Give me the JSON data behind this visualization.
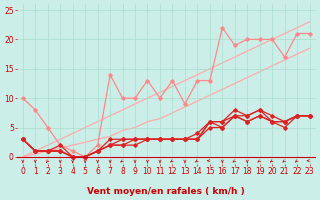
{
  "bg_color": "#cceee8",
  "grid_color": "#aaddcc",
  "xlabel": "Vent moyen/en rafales ( km/h )",
  "xlabel_color": "#cc0000",
  "xlabel_fontsize": 6.5,
  "tick_color": "#cc0000",
  "tick_fontsize": 5.5,
  "xlim": [
    -0.5,
    23.5
  ],
  "ylim": [
    -1.2,
    26
  ],
  "yticks": [
    0,
    5,
    10,
    15,
    20,
    25
  ],
  "xticks": [
    0,
    1,
    2,
    3,
    4,
    5,
    6,
    7,
    8,
    9,
    10,
    11,
    12,
    13,
    14,
    15,
    16,
    17,
    18,
    19,
    20,
    21,
    22,
    23
  ],
  "x": [
    0,
    1,
    2,
    3,
    4,
    5,
    6,
    7,
    8,
    9,
    10,
    11,
    12,
    13,
    14,
    15,
    16,
    17,
    18,
    19,
    20,
    21,
    22,
    23
  ],
  "dark_series": [
    [
      3,
      1,
      1,
      2,
      0,
      0,
      1,
      3,
      3,
      3,
      3,
      3,
      3,
      3,
      4,
      6,
      6,
      8,
      7,
      8,
      7,
      6,
      7,
      7
    ],
    [
      3,
      1,
      1,
      1,
      0,
      0,
      1,
      2,
      3,
      3,
      3,
      3,
      3,
      3,
      3,
      6,
      6,
      7,
      7,
      8,
      6,
      6,
      7,
      7
    ],
    [
      3,
      1,
      1,
      1,
      0,
      0,
      1,
      2,
      2,
      3,
      3,
      3,
      3,
      3,
      3,
      6,
      5,
      7,
      6,
      7,
      6,
      6,
      7,
      7
    ],
    [
      3,
      1,
      1,
      1,
      0,
      0,
      1,
      2,
      2,
      2,
      3,
      3,
      3,
      3,
      3,
      5,
      5,
      7,
      6,
      7,
      6,
      5,
      7,
      7
    ]
  ],
  "dark_color": "#dd2222",
  "dark_marker": "D",
  "dark_ms": 1.8,
  "dark_lw": 0.9,
  "light_series_jagged": [
    10,
    8,
    5,
    2,
    1,
    0,
    2,
    14,
    10,
    10,
    13,
    10,
    13,
    9,
    13,
    13,
    22,
    19,
    20,
    20,
    20,
    17,
    21,
    21
  ],
  "light_series_jagged_color": "#ff8888",
  "light_series_jagged_lw": 0.9,
  "light_series_jagged_ms": 1.8,
  "light_line1": [
    0,
    1,
    2,
    3,
    4,
    5,
    6,
    7,
    8,
    9,
    10,
    11,
    12,
    13,
    14,
    15,
    16,
    17,
    18,
    19,
    20,
    21,
    22,
    23
  ],
  "light_line2": [
    0,
    0.5,
    1.0,
    1.5,
    2.0,
    2.5,
    3.0,
    3.5,
    4.5,
    5.0,
    6.0,
    6.5,
    7.5,
    8.5,
    9.5,
    10.5,
    11.5,
    12.5,
    13.5,
    14.5,
    15.5,
    16.5,
    17.5,
    18.5
  ],
  "light_line_color": "#ffaaaa",
  "light_line_lw": 0.9,
  "arrow_color": "#cc0000",
  "arrow_angles": [
    270,
    270,
    240,
    270,
    270,
    270,
    270,
    270,
    225,
    270,
    270,
    270,
    225,
    270,
    225,
    180,
    270,
    225,
    270,
    225,
    225,
    225,
    225,
    180
  ]
}
